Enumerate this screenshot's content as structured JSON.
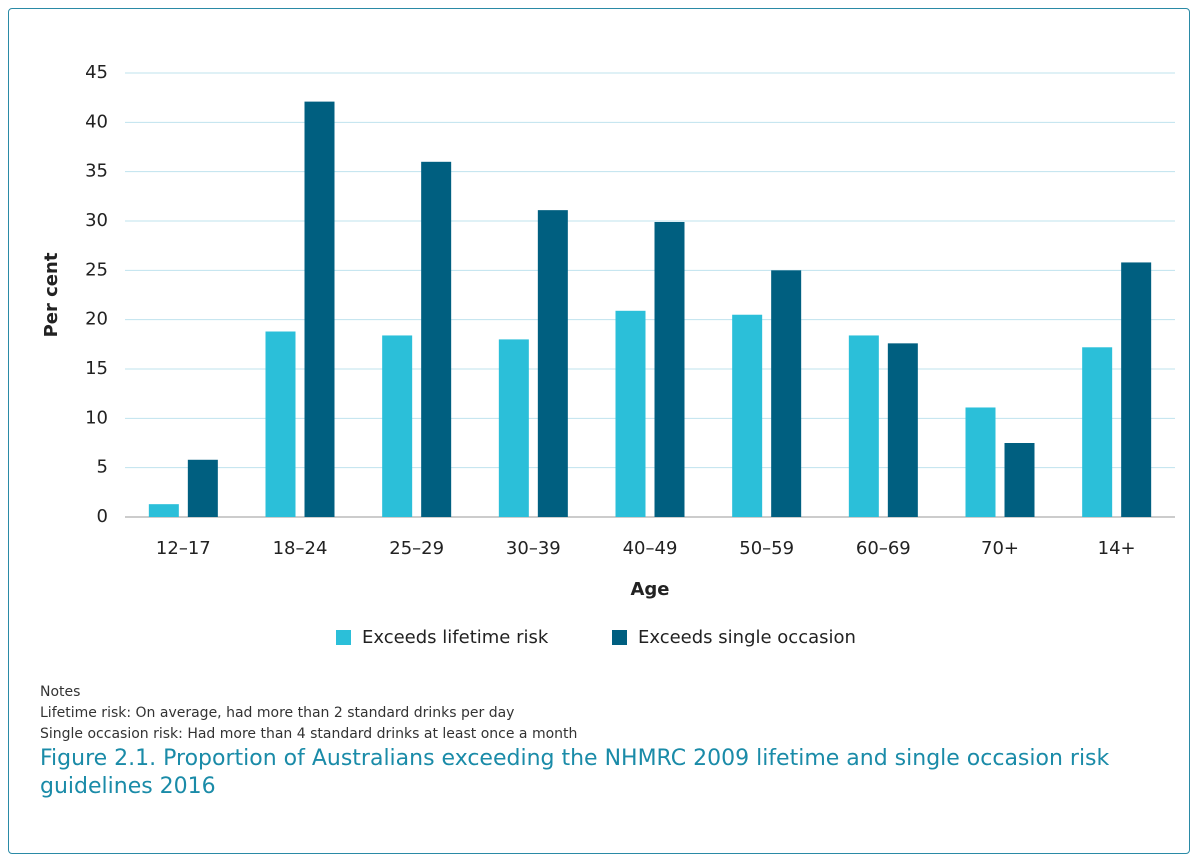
{
  "chart_data": {
    "type": "bar",
    "title": "Figure 2.1. Proportion of Australians exceeding the NHMRC 2009 lifetime and single occasion risk guidelines 2016",
    "y_label": "Per cent",
    "x_label": "Age",
    "categories": [
      "12–17",
      "18–24",
      "25–29",
      "30–39",
      "40–49",
      "50–59",
      "60–69",
      "70+",
      "14+"
    ],
    "series": [
      {
        "name": "Exceeds lifetime risk",
        "color": "#2bbfd9",
        "values": [
          1.3,
          18.8,
          18.4,
          18.0,
          20.9,
          20.5,
          18.4,
          11.1,
          17.2
        ]
      },
      {
        "name": "Exceeds single occasion",
        "color": "#005f80",
        "values": [
          5.8,
          42.1,
          36.0,
          31.1,
          29.9,
          25.0,
          17.6,
          7.5,
          25.8
        ]
      }
    ],
    "ylim": [
      0,
      45
    ],
    "yticks": [
      0,
      5,
      10,
      15,
      20,
      25,
      30,
      35,
      40,
      45
    ],
    "grid": true,
    "notes": {
      "heading": "Notes",
      "lines": [
        "Lifetime risk: On average, had more than 2 standard drinks per day",
        "Single occasion risk: Had more than 4 standard drinks at least once a month"
      ]
    }
  }
}
